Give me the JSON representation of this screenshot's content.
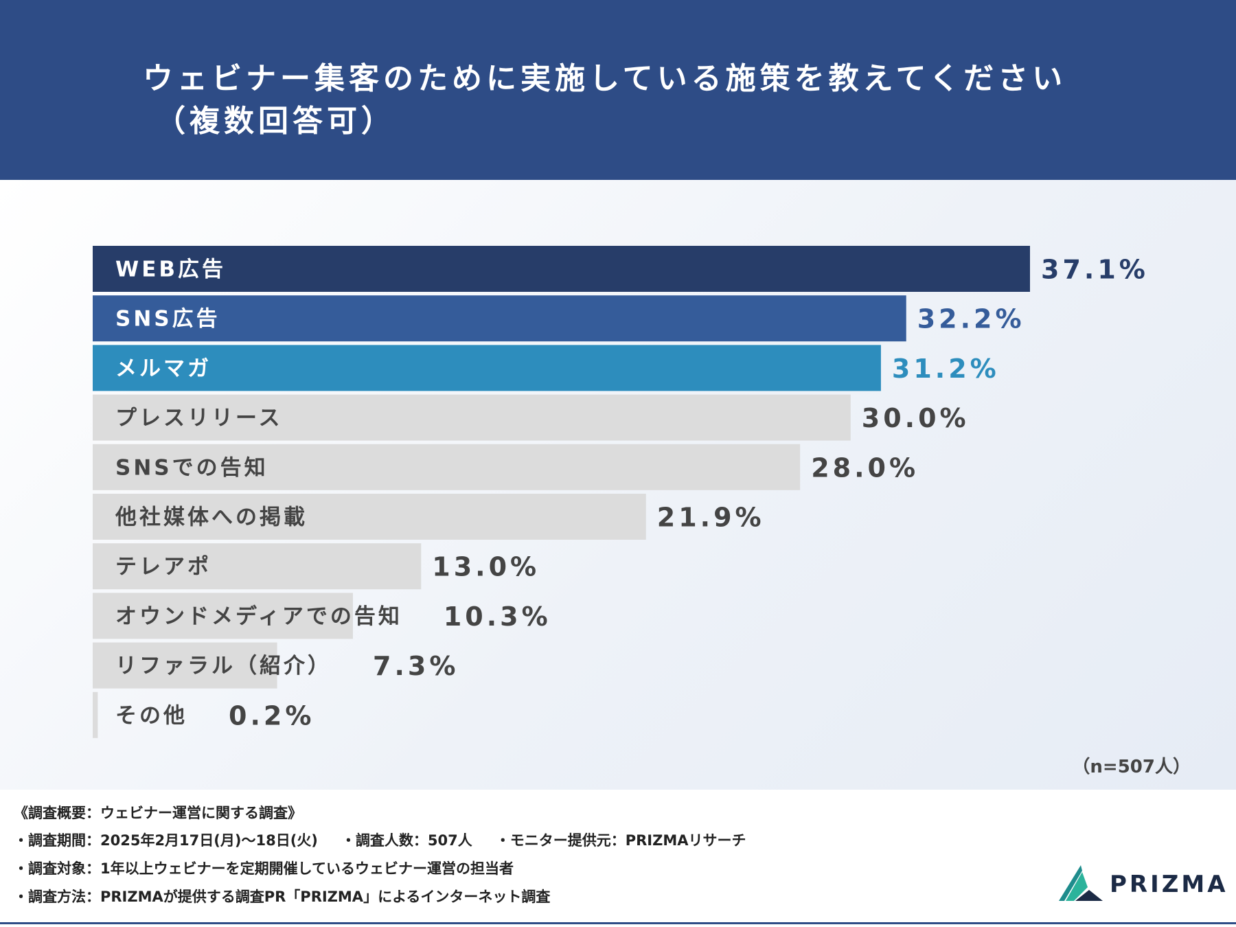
{
  "header": {
    "title_line1": "ウェビナー集客のために実施している施策を教えてください",
    "title_line2": "（複数回答可）"
  },
  "chart_data": {
    "type": "bar",
    "orientation": "horizontal",
    "title": "ウェビナー集客のために実施している施策を教えてください（複数回答可）",
    "categories": [
      "WEB広告",
      "SNS広告",
      "メルマガ",
      "プレスリリース",
      "SNSでの告知",
      "他社媒体への掲載",
      "テレアポ",
      "オウンドメディアでの告知",
      "リファラル（紹介）",
      "その他"
    ],
    "values": [
      37.1,
      32.2,
      31.2,
      30.0,
      28.0,
      21.9,
      13.0,
      10.3,
      7.3,
      0.2
    ],
    "value_labels": [
      "37.1%",
      "32.2%",
      "31.2%",
      "30.0%",
      "28.0%",
      "21.9%",
      "13.0%",
      "10.3%",
      "7.3%",
      "0.2%"
    ],
    "colors": [
      "#273d69",
      "#355c9a",
      "#2d8dbd",
      "#dcdcdc",
      "#dcdcdc",
      "#dcdcdc",
      "#dcdcdc",
      "#dcdcdc",
      "#dcdcdc",
      "#dcdcdc"
    ],
    "value_colors": [
      "#273d69",
      "#355c9a",
      "#2d8dbd",
      "#444444",
      "#444444",
      "#444444",
      "#444444",
      "#444444",
      "#444444",
      "#444444"
    ],
    "label_colors": [
      "#ffffff",
      "#ffffff",
      "#ffffff",
      "#444444",
      "#444444",
      "#444444",
      "#444444",
      "#444444",
      "#444444",
      "#444444"
    ],
    "xlabel": "",
    "ylabel": "",
    "xlim": [
      0,
      37.1
    ]
  },
  "sample_size": "（n=507人）",
  "footer": {
    "summary": "《調査概要：ウェビナー運営に関する調査》",
    "period": "・調査期間：2025年2月17日(月)〜18日(火)",
    "respondents": "・調査人数：507人",
    "provider": "・モニター提供元：PRIZMAリサーチ",
    "target": "・調査対象：1年以上ウェビナーを定期開催しているウェビナー運営の担当者",
    "method": "・調査方法：PRIZMAが提供する調査PR「PRIZMA」によるインターネット調査"
  },
  "brand": {
    "name": "PRIZMA",
    "colors": [
      "#1e8c8c",
      "#2bb39b",
      "#1b2a45"
    ]
  }
}
